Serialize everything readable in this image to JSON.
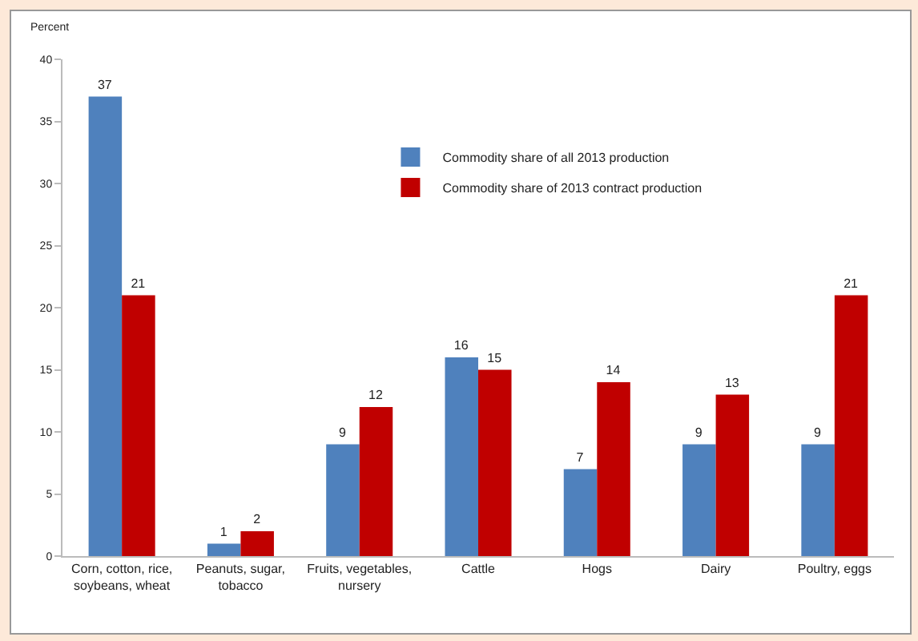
{
  "chart_data": {
    "type": "bar",
    "ylabel": "Percent",
    "categories": [
      "Corn, cotton, rice,\nsoybeans, wheat",
      "Peanuts, sugar,\ntobacco",
      "Fruits, vegetables,\nnursery",
      "Cattle",
      "Hogs",
      "Dairy",
      "Poultry, eggs"
    ],
    "series": [
      {
        "name": "Commodity share of all 2013 production",
        "color": "#4f81bd",
        "values": [
          37,
          1,
          9,
          16,
          7,
          9,
          9
        ]
      },
      {
        "name": "Commodity share of 2013 contract production",
        "color": "#c00000",
        "values": [
          21,
          2,
          12,
          15,
          14,
          13,
          21
        ]
      }
    ],
    "ylim": [
      0,
      40
    ],
    "yticks": [
      0,
      5,
      10,
      15,
      20,
      25,
      30,
      35,
      40
    ],
    "grid": false,
    "legend": "top",
    "data_labels": true
  }
}
